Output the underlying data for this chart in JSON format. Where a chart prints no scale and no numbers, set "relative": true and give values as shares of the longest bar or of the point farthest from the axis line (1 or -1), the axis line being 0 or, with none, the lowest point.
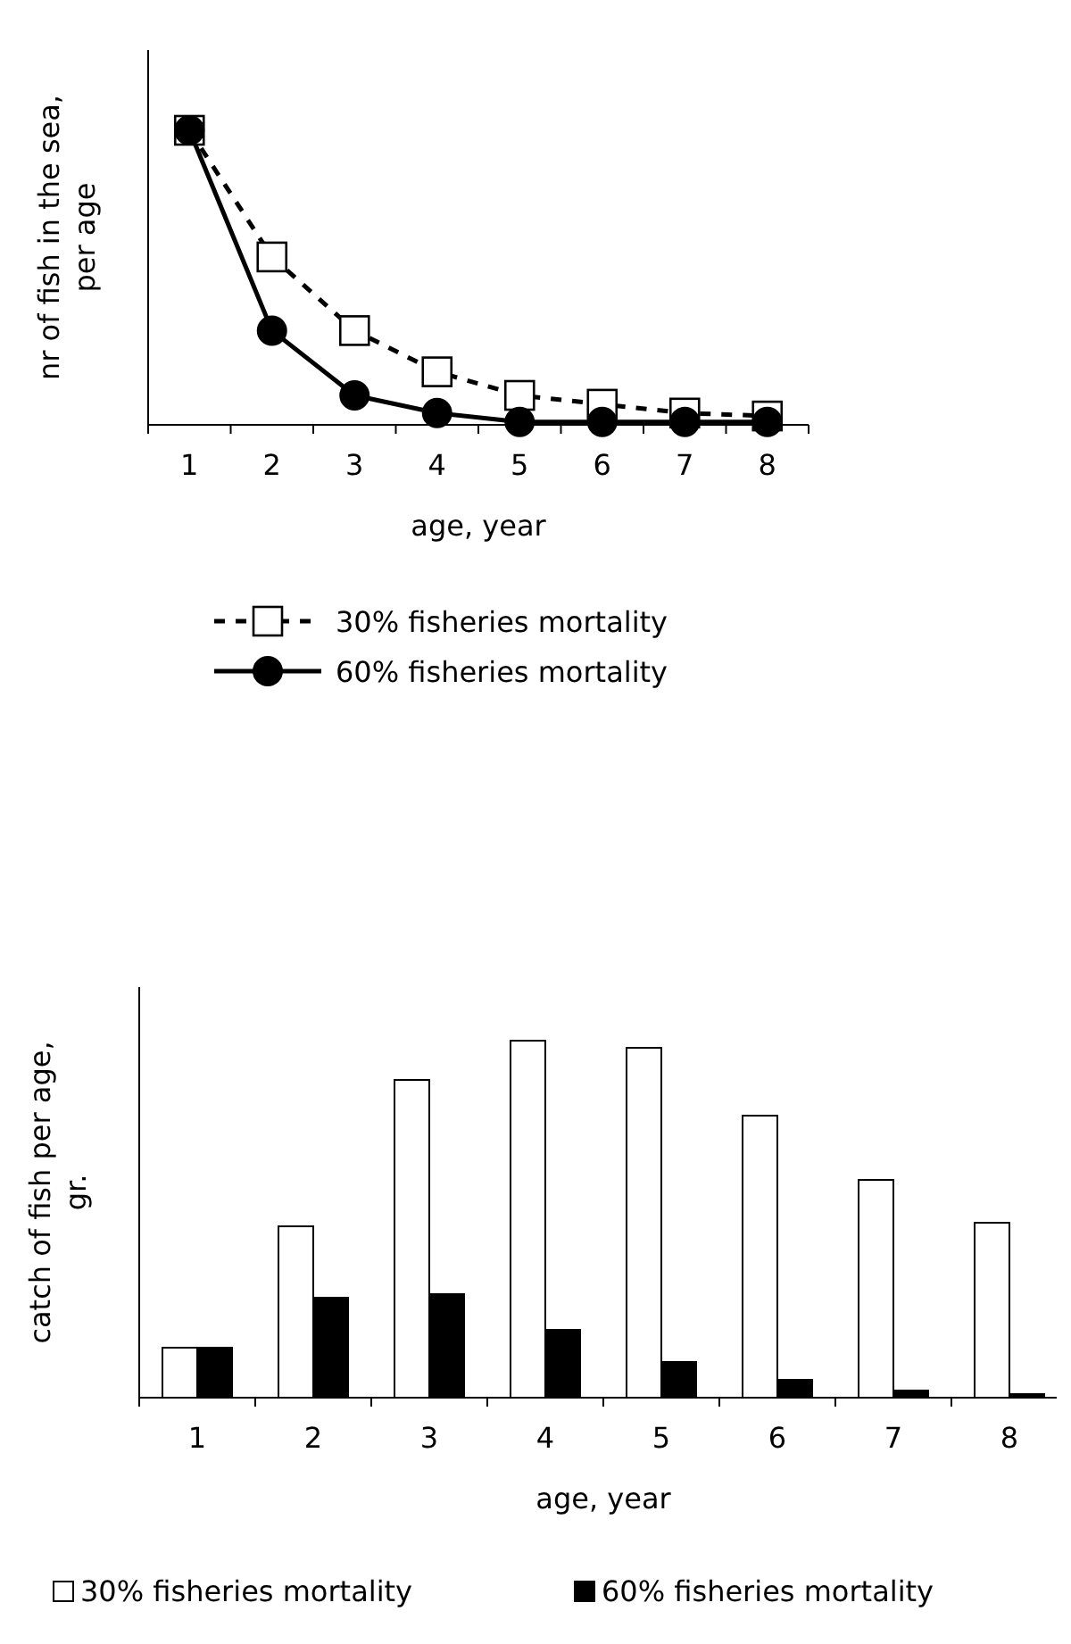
{
  "chart_data": [
    {
      "type": "line",
      "relative": true,
      "xlabel": "age, year",
      "ylabel": "nr of fish in the sea, per age",
      "categories": [
        "1",
        "2",
        "3",
        "4",
        "5",
        "6",
        "7",
        "8"
      ],
      "legend": "bottom",
      "series": [
        {
          "name": "30% fisheries mortality",
          "color": "#000000",
          "marker": "square",
          "line_style": "dashed",
          "values": [
            1,
            0.57,
            0.32,
            0.18,
            0.1,
            0.07,
            0.04,
            0.03
          ]
        },
        {
          "name": "60% fisheries mortality",
          "color": "#000000",
          "marker": "circle",
          "line_style": "solid",
          "values": [
            1,
            0.32,
            0.1,
            0.04,
            0.01,
            0.01,
            0.01,
            0.01
          ]
        }
      ]
    },
    {
      "type": "bar",
      "relative": true,
      "xlabel": "age, year",
      "ylabel": "catch of fish per age, gr.",
      "categories": [
        "1",
        "2",
        "3",
        "4",
        "5",
        "6",
        "7",
        "8"
      ],
      "legend": "bottom",
      "series": [
        {
          "name": "30% fisheries mortality",
          "color": "#ffffff",
          "values": [
            0.14,
            0.48,
            0.89,
            1,
            0.98,
            0.79,
            0.61,
            0.49
          ]
        },
        {
          "name": "60% fisheries mortality",
          "color": "#000000",
          "values": [
            0.14,
            0.28,
            0.29,
            0.19,
            0.1,
            0.05,
            0.02,
            0.01
          ]
        }
      ]
    }
  ]
}
